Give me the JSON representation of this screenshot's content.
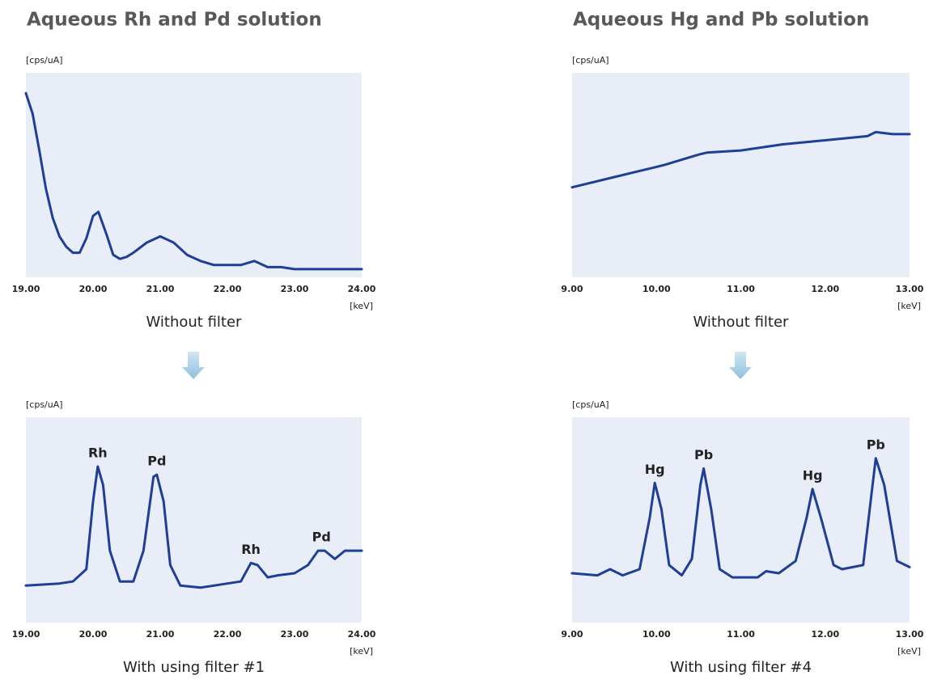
{
  "chart_data": [
    {
      "type": "line",
      "title": "Aqueous Rh and Pd solution",
      "ylabel": "[cps/uA]",
      "xlabel": "[keV]",
      "caption": "Without filter",
      "color": "#1f3f96",
      "background": "#e8edf8",
      "xlim": [
        19,
        24
      ],
      "ylim": [
        0,
        100
      ],
      "xticks": [
        {
          "value": 19,
          "label": "19.00"
        },
        {
          "value": 20,
          "label": "20.00"
        },
        {
          "value": 21,
          "label": "21.00"
        },
        {
          "value": 22,
          "label": "22.00"
        },
        {
          "value": 23,
          "label": "23.00"
        },
        {
          "value": 24,
          "label": "24.00"
        }
      ],
      "x": [
        19.0,
        19.1,
        19.2,
        19.3,
        19.4,
        19.5,
        19.6,
        19.7,
        19.8,
        19.9,
        20.0,
        20.08,
        20.2,
        20.3,
        20.4,
        20.5,
        20.6,
        20.8,
        21.0,
        21.2,
        21.4,
        21.6,
        21.8,
        22.0,
        22.2,
        22.4,
        22.6,
        22.8,
        23.0,
        23.5,
        24.0
      ],
      "values": [
        90,
        80,
        62,
        43,
        29,
        20,
        15,
        12,
        12,
        19,
        30,
        32,
        21,
        11,
        9,
        10,
        12,
        17,
        20,
        17,
        11,
        8,
        6,
        6,
        6,
        8,
        5,
        5,
        4,
        4,
        4
      ]
    },
    {
      "type": "line",
      "title": "Aqueous Hg and Pb solution",
      "ylabel": "[cps/uA]",
      "xlabel": "[keV]",
      "caption": "Without filter",
      "color": "#1f3f96",
      "background": "#e8edf8",
      "xlim": [
        9,
        13
      ],
      "ylim": [
        0,
        100
      ],
      "xticks": [
        {
          "value": 9,
          "label": "9.00"
        },
        {
          "value": 10,
          "label": "10.00"
        },
        {
          "value": 11,
          "label": "11.00"
        },
        {
          "value": 12,
          "label": "12.00"
        },
        {
          "value": 13,
          "label": "13.00"
        }
      ],
      "x": [
        9.0,
        9.5,
        9.8,
        10.0,
        10.1,
        10.5,
        10.6,
        11.0,
        11.5,
        12.0,
        12.5,
        12.6,
        12.8,
        13.0
      ],
      "values": [
        44,
        49,
        52,
        54,
        55,
        60,
        61,
        62,
        65,
        67,
        69,
        71,
        70,
        70
      ]
    },
    {
      "type": "line",
      "ylabel": "[cps/uA]",
      "xlabel": "[keV]",
      "caption": "With using filter #1",
      "color": "#1f3f96",
      "background": "#e8edf8",
      "xlim": [
        19,
        24
      ],
      "ylim": [
        0,
        100
      ],
      "xticks": [
        {
          "value": 19,
          "label": "19.00"
        },
        {
          "value": 20,
          "label": "20.00"
        },
        {
          "value": 21,
          "label": "21.00"
        },
        {
          "value": 22,
          "label": "22.00"
        },
        {
          "value": 23,
          "label": "23.00"
        },
        {
          "value": 24,
          "label": "24.00"
        }
      ],
      "x": [
        19.0,
        19.5,
        19.7,
        19.9,
        20.0,
        20.07,
        20.15,
        20.25,
        20.4,
        20.6,
        20.75,
        20.9,
        20.95,
        21.05,
        21.15,
        21.3,
        21.6,
        22.0,
        22.2,
        22.35,
        22.45,
        22.6,
        22.75,
        23.0,
        23.2,
        23.35,
        23.45,
        23.6,
        23.75,
        24.0
      ],
      "values": [
        18,
        19,
        20,
        26,
        59,
        76,
        67,
        35,
        20,
        20,
        35,
        71,
        72,
        59,
        28,
        18,
        17,
        19,
        20,
        29,
        28,
        22,
        23,
        24,
        28,
        35,
        35,
        31,
        35,
        35
      ],
      "annotations": [
        {
          "text": "Rh",
          "x": 20.07,
          "y": 76
        },
        {
          "text": "Pd",
          "x": 20.95,
          "y": 72
        },
        {
          "text": "Rh",
          "x": 22.35,
          "y": 29
        },
        {
          "text": "Pd",
          "x": 23.4,
          "y": 35
        }
      ]
    },
    {
      "type": "line",
      "ylabel": "[cps/uA]",
      "xlabel": "[keV]",
      "caption": "With using filter #4",
      "color": "#1f3f96",
      "background": "#e8edf8",
      "xlim": [
        9,
        13
      ],
      "ylim": [
        0,
        100
      ],
      "xticks": [
        {
          "value": 9,
          "label": "9.00"
        },
        {
          "value": 10,
          "label": "10.00"
        },
        {
          "value": 11,
          "label": "11.00"
        },
        {
          "value": 12,
          "label": "12.00"
        },
        {
          "value": 13,
          "label": "13.00"
        }
      ],
      "x": [
        9.0,
        9.3,
        9.45,
        9.6,
        9.8,
        9.92,
        9.98,
        10.06,
        10.15,
        10.3,
        10.42,
        10.52,
        10.56,
        10.65,
        10.75,
        10.9,
        11.2,
        11.3,
        11.45,
        11.65,
        11.78,
        11.85,
        11.95,
        12.1,
        12.2,
        12.45,
        12.55,
        12.6,
        12.7,
        12.85,
        13.0
      ],
      "values": [
        24,
        23,
        26,
        23,
        26,
        51,
        68,
        55,
        28,
        23,
        31,
        67,
        75,
        55,
        26,
        22,
        22,
        25,
        24,
        30,
        51,
        65,
        51,
        28,
        26,
        28,
        63,
        80,
        67,
        30,
        27
      ],
      "annotations": [
        {
          "text": "Hg",
          "x": 9.98,
          "y": 68
        },
        {
          "text": "Pb",
          "x": 10.56,
          "y": 75
        },
        {
          "text": "Hg",
          "x": 11.85,
          "y": 65
        },
        {
          "text": "Pb",
          "x": 12.6,
          "y": 80
        }
      ]
    }
  ]
}
